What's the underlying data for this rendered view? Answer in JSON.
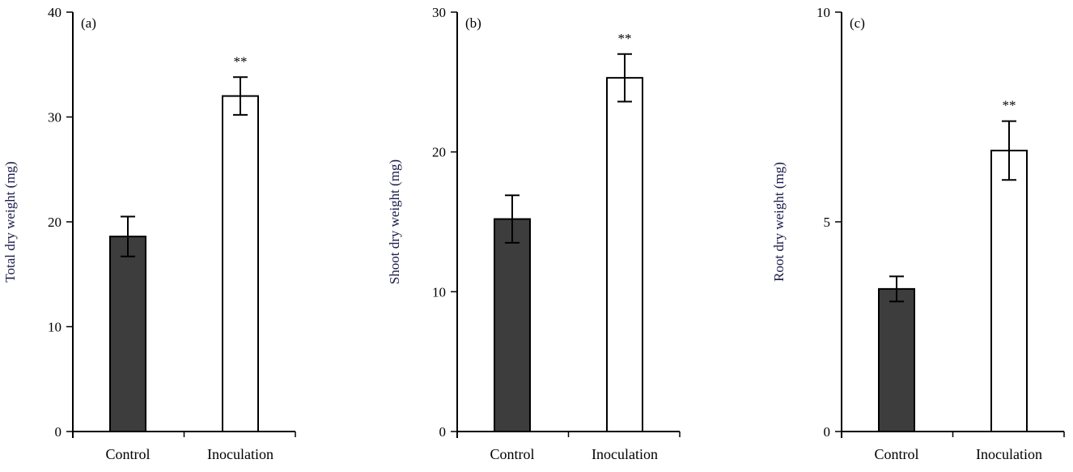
{
  "chart_data": [
    {
      "type": "bar",
      "panel_label": "(a)",
      "ylabel": "Total dry weight (mg)",
      "categories": [
        "Control",
        "Inoculation"
      ],
      "values": [
        18.6,
        32.0
      ],
      "errors": [
        1.9,
        1.8
      ],
      "annotations": [
        "",
        "**"
      ],
      "ylim": [
        0,
        40
      ],
      "yticks": [
        0,
        10,
        20,
        30,
        40
      ],
      "grid": false
    },
    {
      "type": "bar",
      "panel_label": "(b)",
      "ylabel": "Shoot dry weight (mg)",
      "categories": [
        "Control",
        "Inoculation"
      ],
      "values": [
        15.2,
        25.3
      ],
      "errors": [
        1.7,
        1.7
      ],
      "annotations": [
        "",
        "**"
      ],
      "ylim": [
        0,
        30
      ],
      "yticks": [
        0,
        10,
        20,
        30
      ],
      "grid": false
    },
    {
      "type": "bar",
      "panel_label": "(c)",
      "ylabel": "Root dry weight (mg)",
      "categories": [
        "Control",
        "Inoculation"
      ],
      "values": [
        3.4,
        6.7
      ],
      "errors": [
        0.3,
        0.7
      ],
      "annotations": [
        "",
        "**"
      ],
      "ylim": [
        0,
        10
      ],
      "yticks": [
        0,
        5,
        10
      ],
      "grid": false
    }
  ],
  "colors": {
    "control": "#3d3d3d",
    "inoculation": "#ffffff",
    "axis": "#000000",
    "ylabel": "#1a1a4a"
  }
}
